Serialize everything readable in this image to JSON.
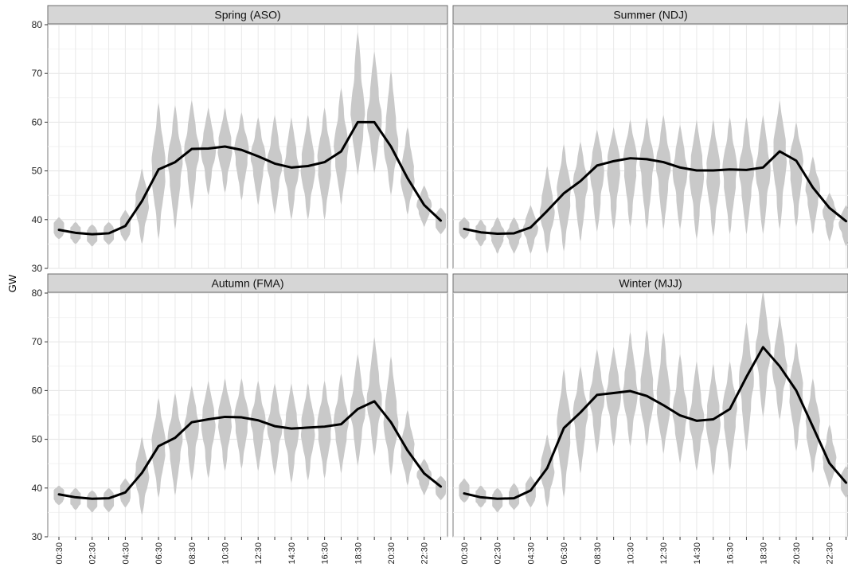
{
  "chart_data": {
    "type": "violin+line",
    "ylabel": "GW",
    "xlabel": "",
    "ylim": [
      30,
      80
    ],
    "y_ticks": [
      30,
      40,
      50,
      60,
      70,
      80
    ],
    "x_ticks": [
      "00:30",
      "02:30",
      "04:30",
      "06:30",
      "08:30",
      "10:30",
      "12:30",
      "14:30",
      "16:30",
      "18:30",
      "20:30",
      "22:30"
    ],
    "grid": true,
    "x_halfhours": [
      "00:30",
      "01:30",
      "02:30",
      "03:30",
      "04:30",
      "05:30",
      "06:30",
      "07:30",
      "08:30",
      "09:30",
      "10:30",
      "11:30",
      "12:30",
      "13:30",
      "14:30",
      "15:30",
      "16:30",
      "17:30",
      "18:30",
      "19:30",
      "20:30",
      "21:30",
      "22:30",
      "23:30"
    ],
    "panels": [
      {
        "title": "Spring (ASO)",
        "mean": [
          37.9,
          37.3,
          37.0,
          37.2,
          38.7,
          43.8,
          50.3,
          51.8,
          54.5,
          54.6,
          55.0,
          54.3,
          53.0,
          51.5,
          50.7,
          51.0,
          51.8,
          54.0,
          60.0,
          60.0,
          55.0,
          48.5,
          43.0,
          39.8
        ],
        "low": [
          36.0,
          35.0,
          34.5,
          34.8,
          35.5,
          35.0,
          36.0,
          38.0,
          42.0,
          45.0,
          45.5,
          44.0,
          43.0,
          41.0,
          40.0,
          40.0,
          40.0,
          43.0,
          49.0,
          49.5,
          45.0,
          41.0,
          38.5,
          37.0
        ],
        "high": [
          40.5,
          39.5,
          39.0,
          39.5,
          42.0,
          50.5,
          64.0,
          63.5,
          64.5,
          63.0,
          63.0,
          62.0,
          61.0,
          61.5,
          61.0,
          61.5,
          63.0,
          67.0,
          78.5,
          74.5,
          70.5,
          59.0,
          47.0,
          42.5
        ]
      },
      {
        "title": "Summer (NDJ)",
        "mean": [
          38.1,
          37.4,
          37.1,
          37.2,
          38.4,
          41.8,
          45.4,
          47.9,
          51.1,
          52.0,
          52.6,
          52.4,
          51.8,
          50.7,
          50.1,
          50.1,
          50.3,
          50.2,
          50.7,
          54.0,
          52.1,
          46.6,
          42.4,
          39.7
        ],
        "low": [
          36.0,
          34.5,
          33.0,
          33.0,
          33.0,
          33.0,
          33.5,
          35.5,
          37.5,
          38.0,
          38.5,
          38.0,
          38.0,
          38.0,
          36.0,
          36.5,
          37.0,
          37.0,
          37.0,
          38.0,
          38.5,
          37.0,
          35.5,
          34.5
        ],
        "high": [
          40.5,
          40.0,
          40.5,
          40.5,
          43.0,
          51.0,
          55.5,
          56.0,
          58.5,
          59.0,
          60.5,
          61.0,
          61.5,
          59.5,
          60.5,
          60.5,
          61.0,
          61.0,
          61.5,
          64.5,
          60.0,
          53.0,
          45.5,
          43.0
        ]
      },
      {
        "title": "Autumn (FMA)",
        "mean": [
          38.7,
          38.1,
          37.8,
          37.9,
          39.1,
          43.1,
          48.6,
          50.3,
          53.5,
          54.1,
          54.6,
          54.5,
          53.9,
          52.7,
          52.2,
          52.4,
          52.6,
          53.1,
          56.2,
          57.8,
          53.5,
          47.7,
          43.0,
          40.3
        ],
        "low": [
          36.5,
          35.5,
          35.0,
          35.0,
          36.0,
          34.5,
          38.0,
          38.5,
          41.5,
          42.0,
          43.5,
          44.0,
          43.5,
          42.5,
          41.0,
          41.5,
          42.0,
          43.0,
          44.5,
          46.5,
          42.5,
          40.5,
          38.5,
          37.5
        ],
        "high": [
          40.5,
          40.0,
          39.5,
          40.0,
          42.0,
          50.5,
          58.5,
          59.5,
          61.0,
          62.0,
          62.5,
          62.5,
          62.0,
          61.5,
          61.5,
          61.5,
          62.0,
          63.5,
          67.5,
          71.0,
          67.0,
          56.0,
          46.0,
          42.5
        ]
      },
      {
        "title": "Winter (MJJ)",
        "mean": [
          38.9,
          38.1,
          37.8,
          37.9,
          39.5,
          44.1,
          52.3,
          55.5,
          59.1,
          59.5,
          59.9,
          58.9,
          57.0,
          54.9,
          53.8,
          54.1,
          56.2,
          62.8,
          68.9,
          65.0,
          60.0,
          52.6,
          45.1,
          41.1
        ],
        "low": [
          37.0,
          36.0,
          35.0,
          35.5,
          36.0,
          36.0,
          38.0,
          43.0,
          47.0,
          48.5,
          48.5,
          48.5,
          47.0,
          45.0,
          43.5,
          42.5,
          43.5,
          47.5,
          54.5,
          54.0,
          47.5,
          43.0,
          40.0,
          38.0
        ],
        "high": [
          42.0,
          40.5,
          40.0,
          41.0,
          42.5,
          51.0,
          64.5,
          65.0,
          68.5,
          69.0,
          72.0,
          72.5,
          72.0,
          67.5,
          66.0,
          65.5,
          66.0,
          74.0,
          80.5,
          75.5,
          70.0,
          62.5,
          53.0,
          44.5
        ]
      }
    ]
  }
}
